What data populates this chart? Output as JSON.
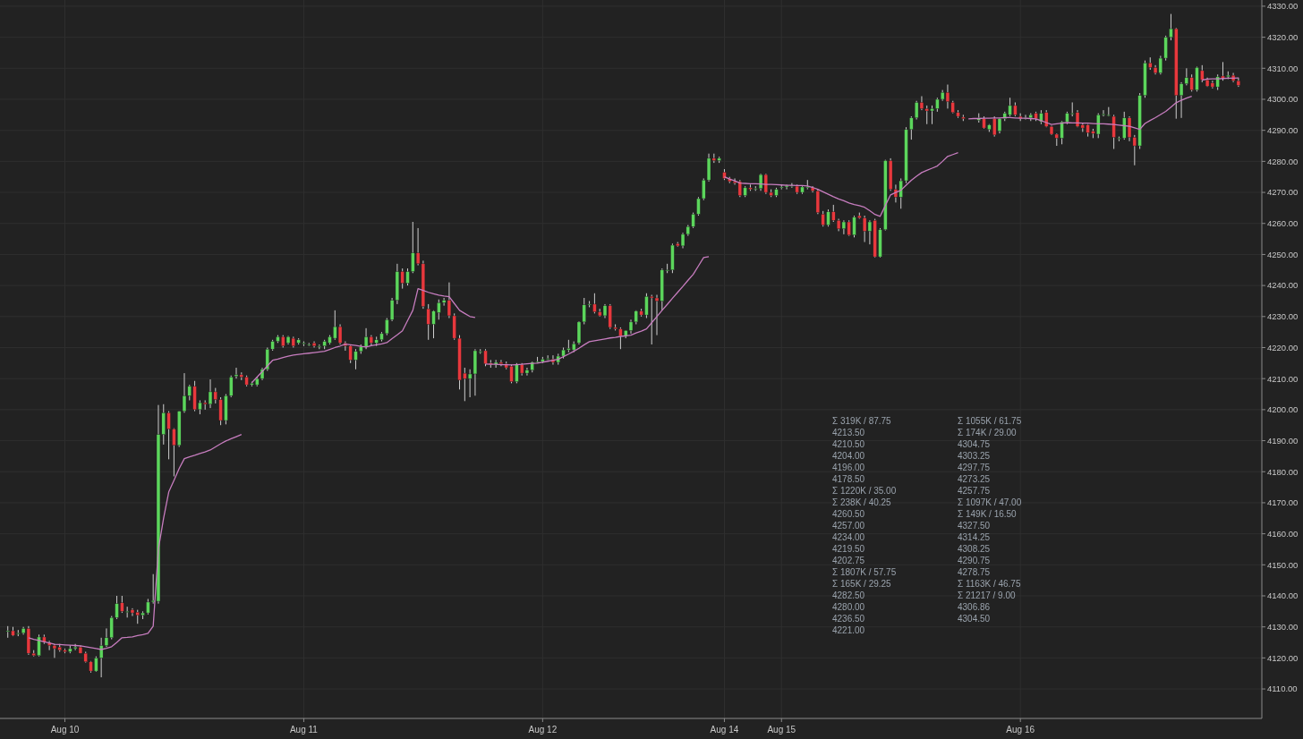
{
  "chart_data": {
    "type": "candlestick",
    "ylim": [
      4100.5,
      4332
    ],
    "categories": [
      null,
      null,
      null,
      null,
      null,
      null,
      null,
      null,
      null,
      null,
      null,
      null,
      "Aug 10",
      null,
      null,
      null,
      null,
      null,
      null,
      null,
      null,
      null,
      null,
      null,
      null,
      null,
      null,
      null,
      null,
      null,
      null,
      null,
      null,
      null,
      null,
      null,
      null,
      null,
      null,
      null,
      null,
      null,
      null,
      null,
      null,
      null,
      null,
      null,
      null,
      null,
      null,
      null,
      null,
      null,
      null,
      null,
      null,
      null,
      "Aug 11",
      null,
      null,
      null,
      null,
      null,
      null,
      null,
      null,
      null,
      null,
      null,
      null,
      null,
      null,
      null,
      null,
      null,
      null,
      null,
      null,
      null,
      null,
      null,
      null,
      null,
      null,
      null,
      null,
      null,
      null,
      null,
      null,
      null,
      null,
      null,
      null,
      null,
      null,
      null,
      null,
      null,
      null,
      null,
      null,
      null,
      "Aug 12",
      null,
      null,
      null,
      null,
      null,
      null,
      null,
      null,
      null,
      null,
      null,
      null,
      null,
      null,
      null,
      null,
      null,
      null,
      null,
      null,
      null,
      null,
      null,
      null,
      null,
      null,
      null,
      null,
      null,
      null,
      null,
      null,
      null,
      null,
      "Aug 14",
      null,
      null,
      null,
      null,
      null,
      null,
      null,
      null,
      null,
      null,
      "Aug 15",
      null,
      null,
      null,
      null,
      null,
      null,
      null,
      null,
      null,
      null,
      null,
      null,
      null,
      null,
      null,
      null,
      null,
      null,
      null,
      null,
      null,
      null,
      null,
      null,
      null,
      null,
      null,
      null,
      null,
      null,
      null,
      null,
      null,
      null,
      null,
      null,
      null,
      null,
      null,
      null,
      null,
      null,
      null,
      null,
      null,
      "Aug 16",
      null,
      null,
      null,
      null,
      null,
      null,
      null,
      null,
      null,
      null,
      null,
      null,
      null,
      null,
      null,
      null,
      null,
      null,
      null,
      null,
      null,
      null,
      null,
      null,
      null,
      null,
      null,
      null,
      null,
      null,
      null,
      null,
      null,
      null,
      null,
      null,
      null,
      null,
      null,
      null,
      null,
      null,
      null,
      null,
      null,
      null
    ],
    "yticks": [
      {
        "value": 4110,
        "label": "4110.00"
      },
      {
        "value": 4120,
        "label": "4120.00"
      },
      {
        "value": 4130,
        "label": "4130.00"
      },
      {
        "value": 4140,
        "label": "4140.00"
      },
      {
        "value": 4150,
        "label": "4150.00"
      },
      {
        "value": 4160,
        "label": "4160.00"
      },
      {
        "value": 4170,
        "label": "4170.00"
      },
      {
        "value": 4180,
        "label": "4180.00"
      },
      {
        "value": 4190,
        "label": "4190.00"
      },
      {
        "value": 4200,
        "label": "4200.00"
      },
      {
        "value": 4210,
        "label": "4210.00"
      },
      {
        "value": 4220,
        "label": "4220.00"
      },
      {
        "value": 4230,
        "label": "4230.00"
      },
      {
        "value": 4240,
        "label": "4240.00"
      },
      {
        "value": 4250,
        "label": "4250.00"
      },
      {
        "value": 4260,
        "label": "4260.00"
      },
      {
        "value": 4270,
        "label": "4270.00"
      },
      {
        "value": 4280,
        "label": "4280.00"
      },
      {
        "value": 4290,
        "label": "4290.00"
      },
      {
        "value": 4300,
        "label": "4300.00"
      },
      {
        "value": 4310,
        "label": "4310.00"
      },
      {
        "value": 4320,
        "label": "4320.00"
      },
      {
        "value": 4330,
        "label": "4330.00"
      }
    ],
    "grid": true,
    "series": [
      {
        "ohlc": [
          null,
          [
            4128.75,
            4130.25,
            4126.5,
            4128.75
          ],
          [
            4128.75,
            4130,
            4127,
            4127.25
          ],
          [
            4128,
            4129,
            4127,
            4128
          ],
          [
            4128,
            4130,
            4127.5,
            4129.5
          ],
          [
            4129.5,
            4130.25,
            4121,
            4121.5
          ],
          [
            4121.5,
            4122.5,
            4120.5,
            4120.75
          ],
          [
            4120.75,
            4127.5,
            4120.5,
            4126.75
          ],
          [
            4126.75,
            4127.5,
            4124.5,
            4125
          ],
          [
            4125,
            4125.5,
            4122.5,
            4124
          ],
          [
            4124,
            4124.5,
            4120,
            4123
          ],
          [
            4123.5,
            4124.5,
            4122,
            4122.5
          ],
          [
            4122.5,
            4123,
            4121.5,
            4122
          ],
          [
            4122,
            4124,
            4121.5,
            4123
          ],
          [
            4123,
            4124.5,
            4122.5,
            4123.5
          ],
          [
            4123.5,
            4124,
            4121.5,
            4121.5
          ],
          [
            4121.5,
            4122,
            4118.5,
            4118.75
          ],
          [
            4118.75,
            4119,
            4115.25,
            4115.75
          ],
          [
            4115.75,
            4120.5,
            4115.5,
            4120
          ],
          [
            4120,
            4126.5,
            4113.75,
            4124
          ],
          [
            4124,
            4129.5,
            4123.5,
            4126.5
          ],
          [
            4126.5,
            4133.5,
            4126,
            4133
          ],
          [
            4133,
            4140,
            4132.5,
            4137.5
          ],
          [
            4137.75,
            4140,
            4134.5,
            4135
          ],
          [
            4135,
            4136.5,
            4133,
            4135
          ],
          [
            4135.5,
            4136,
            4133.5,
            4134.5
          ],
          [
            4134.75,
            4135.5,
            4131,
            4133.75
          ],
          [
            4133.75,
            4135,
            4132.5,
            4134.5
          ],
          [
            4134.5,
            4139,
            4134,
            4138
          ],
          [
            4138,
            4147,
            4137.5,
            4138.5
          ],
          [
            4138.25,
            4201.5,
            4137.5,
            4192
          ],
          [
            4192,
            4201.75,
            4188.75,
            4199
          ],
          [
            4199,
            4199.5,
            4184,
            4193.75
          ],
          [
            4193.75,
            4194,
            4178.5,
            4188.5
          ],
          [
            4188.5,
            4199.5,
            4188,
            4199.5
          ],
          [
            4199.5,
            4211.75,
            4199,
            4204.5
          ],
          [
            4204.5,
            4208,
            4203,
            4207.5
          ],
          [
            4207.5,
            4209.25,
            4199.5,
            4200
          ],
          [
            4200,
            4203,
            4198.5,
            4202.25
          ],
          [
            4202.25,
            4203,
            4200,
            4201.75
          ],
          [
            4201.75,
            4209.75,
            4200.5,
            4205.75
          ],
          [
            4205.75,
            4207,
            4202,
            4203.25
          ],
          [
            4203.25,
            4204,
            4195,
            4196.5
          ],
          [
            4196.5,
            4205,
            4195.25,
            4204.5
          ],
          [
            4204.5,
            4211,
            4204,
            4210.5
          ],
          [
            4210.75,
            4213.5,
            4210,
            4211.25
          ],
          [
            4211.25,
            4212,
            4209.5,
            4210.5
          ],
          [
            4210.5,
            4211,
            4207.5,
            4208
          ],
          [
            4208,
            4209,
            4207.5,
            4208.5
          ],
          [
            4208,
            4210.5,
            4207.5,
            4210
          ],
          [
            4210,
            4213.5,
            4209.5,
            4213
          ],
          [
            4213,
            4220,
            4212.5,
            4219.5
          ],
          [
            4219.5,
            4222.5,
            4219,
            4222
          ],
          [
            4222,
            4224,
            4221.5,
            4223.5
          ],
          [
            4223.5,
            4224,
            4220,
            4220.5
          ],
          [
            4221.5,
            4223.75,
            4221,
            4223.5
          ],
          [
            4223,
            4223.5,
            4220,
            4220.5
          ],
          [
            4221.5,
            4223,
            4221,
            4222.5
          ],
          [
            4221.5,
            4222,
            4220.5,
            4221.5
          ],
          [
            4221,
            4221.5,
            4220.5,
            4221
          ],
          [
            4221.5,
            4222,
            4220,
            4220.5
          ],
          [
            4220.5,
            4221,
            4219.5,
            4220.5
          ],
          [
            4220.5,
            4222.5,
            4219.5,
            4222
          ],
          [
            4221.5,
            4224,
            4221,
            4223.5
          ],
          [
            4223,
            4232,
            4222.5,
            4226.75
          ],
          [
            4226.75,
            4227.5,
            4221,
            4221.5
          ],
          [
            4221.5,
            4222,
            4219,
            4220.5
          ],
          [
            4220.5,
            4221,
            4215,
            4216
          ],
          [
            4216,
            4219.5,
            4213,
            4218.75
          ],
          [
            4218.75,
            4221,
            4218,
            4220.25
          ],
          [
            4220.25,
            4226.25,
            4219.5,
            4223.5
          ],
          [
            4223.5,
            4224,
            4220.5,
            4221.5
          ],
          [
            4221.5,
            4223.5,
            4220.5,
            4222.5
          ],
          [
            4222.5,
            4225,
            4222,
            4224.5
          ],
          [
            4224.5,
            4229.5,
            4224,
            4229
          ],
          [
            4229,
            4236,
            4228.5,
            4235.25
          ],
          [
            4235.25,
            4247,
            4234,
            4244.5
          ],
          [
            4244.5,
            4245.5,
            4239,
            4240.75
          ],
          [
            4240.75,
            4245.5,
            4240,
            4244.5
          ],
          [
            4244.5,
            4260.5,
            4244,
            4250.5
          ],
          [
            4250.5,
            4258.5,
            4246.5,
            4247
          ],
          [
            4247,
            4248,
            4232.5,
            4233.25
          ],
          [
            4232.5,
            4234,
            4222.5,
            4227.5
          ],
          [
            4227.5,
            4232,
            4223,
            4231.75
          ],
          [
            4231.25,
            4235.5,
            4229,
            4234.5
          ],
          [
            4234.5,
            4236,
            4233.5,
            4235.25
          ],
          [
            4235.25,
            4241,
            4229.5,
            4230.25
          ],
          [
            4230.25,
            4231,
            4222.5,
            4223
          ],
          [
            4223,
            4224,
            4206.5,
            4209.5
          ],
          [
            4211.75,
            4213.5,
            4202.75,
            4210
          ],
          [
            4210,
            4213,
            4204,
            4211.5
          ],
          [
            4211.5,
            4219.5,
            4204.5,
            4219
          ],
          [
            4218.75,
            4219.5,
            4218,
            4218.75
          ],
          [
            4219,
            4219.5,
            4214,
            4214.75
          ],
          [
            4215,
            4216,
            4213.5,
            4214.5
          ],
          [
            4214.5,
            4216,
            4213.5,
            4215.25
          ],
          [
            4215.25,
            4216,
            4214,
            4214.75
          ],
          [
            4214.75,
            4215.5,
            4213,
            4213.5
          ],
          [
            4214,
            4214.5,
            4208.5,
            4209
          ],
          [
            4209,
            4215,
            4208.5,
            4214.5
          ],
          [
            4214.5,
            4215,
            4211,
            4211.75
          ],
          [
            4211.75,
            4213.5,
            4211,
            4212.75
          ],
          [
            4212.75,
            4215.5,
            4212,
            4215.25
          ],
          [
            4215.5,
            4217,
            4215,
            4215.5
          ],
          [
            4215.5,
            4217,
            4215,
            4216.25
          ],
          [
            4216.5,
            4217.5,
            4216,
            4216.5
          ],
          [
            4216.25,
            4217.5,
            4214.5,
            4215.25
          ],
          [
            4215.25,
            4218,
            4214.5,
            4217.25
          ],
          [
            4217.25,
            4220,
            4216.5,
            4219.25
          ],
          [
            4219.25,
            4222.5,
            4218.5,
            4219.75
          ],
          [
            4219.25,
            4222,
            4218.5,
            4221.25
          ],
          [
            4221.5,
            4228.5,
            4221,
            4228.25
          ],
          [
            4228.25,
            4236,
            4227.5,
            4233.75
          ],
          [
            4234,
            4235,
            4233,
            4234
          ],
          [
            4234,
            4237.5,
            4231,
            4231.5
          ],
          [
            4231.5,
            4232.5,
            4230,
            4230.25
          ],
          [
            4230.25,
            4234,
            4229.5,
            4233.5
          ],
          [
            4233.5,
            4234,
            4226,
            4226.5
          ],
          [
            4226.5,
            4227.5,
            4225.5,
            4226
          ],
          [
            4226,
            4226.5,
            4219.5,
            4223.75
          ],
          [
            4223.75,
            4225.5,
            4223,
            4225.5
          ],
          [
            4225.5,
            4229,
            4224.5,
            4228.25
          ],
          [
            4228.25,
            4232,
            4227.5,
            4231.75
          ],
          [
            4231.75,
            4232.5,
            4230,
            4230.5
          ],
          [
            4230.5,
            4237.5,
            4229.5,
            4236.5
          ],
          [
            4236.5,
            4237,
            4221,
            4236
          ],
          [
            4236,
            4237,
            4224,
            4235
          ],
          [
            4235,
            4245.5,
            4232,
            4245
          ],
          [
            4245,
            4247,
            4244,
            4245
          ],
          [
            4245,
            4253.5,
            4244,
            4253
          ],
          [
            4253.5,
            4254,
            4252.5,
            4252.75
          ],
          [
            4252.75,
            4257,
            4252,
            4256.5
          ],
          [
            4256.5,
            4259.5,
            4256,
            4259
          ],
          [
            4259,
            4263.5,
            4258.5,
            4263
          ],
          [
            4263,
            4268.5,
            4262.5,
            4268
          ],
          [
            4268,
            4274.5,
            4267.5,
            4274
          ],
          [
            4274,
            4282.5,
            4273.5,
            4281
          ],
          [
            4281,
            4282.5,
            4279.5,
            4280.25
          ],
          [
            4280.25,
            4281.5,
            4279.5,
            4281
          ],
          [
            4276.5,
            4277.5,
            4274,
            4274.5
          ],
          [
            4274.5,
            4275,
            4273,
            4273.5
          ],
          [
            4273.5,
            4274.5,
            4272.5,
            4273
          ],
          [
            4273.5,
            4274,
            4268.5,
            4269
          ],
          [
            4269,
            4272,
            4268.5,
            4271.5
          ],
          [
            4271.5,
            4272.5,
            4270.5,
            4271
          ],
          [
            4271.25,
            4272,
            4270.5,
            4271.25
          ],
          [
            4271.25,
            4276,
            4270.5,
            4275.75
          ],
          [
            4275.75,
            4276,
            4269.5,
            4270
          ],
          [
            4270,
            4271,
            4268.5,
            4269
          ],
          [
            4269,
            4271.5,
            4268.5,
            4271
          ],
          [
            4271.75,
            4272.5,
            4271,
            4271.75
          ],
          [
            4271.75,
            4272.5,
            4271,
            4272.25
          ],
          [
            4272.25,
            4273,
            4271.5,
            4272.25
          ],
          [
            4272,
            4272.5,
            4269.5,
            4270
          ],
          [
            4270,
            4272,
            4269.5,
            4271.75
          ],
          [
            4271.75,
            4274,
            4271,
            4271.75
          ],
          [
            4271.5,
            4272,
            4270,
            4270.5
          ],
          [
            4270.5,
            4271,
            4263,
            4263.5
          ],
          [
            4263,
            4264,
            4259,
            4259.5
          ],
          [
            4259.5,
            4264.5,
            4259,
            4263.75
          ],
          [
            4263.75,
            4266,
            4260.5,
            4261
          ],
          [
            4261,
            4261.5,
            4257.5,
            4258.25
          ],
          [
            4258.25,
            4261,
            4256.5,
            4260.5
          ],
          [
            4260.5,
            4261,
            4256,
            4256.25
          ],
          [
            4256.25,
            4262.5,
            4255.5,
            4262
          ],
          [
            4262.5,
            4263.5,
            4261.5,
            4261.75
          ],
          [
            4261.75,
            4262.5,
            4254,
            4257.5
          ],
          [
            4257.5,
            4261,
            4253.25,
            4260.5
          ],
          [
            4261,
            4261.5,
            4249,
            4249.25
          ],
          [
            4249.25,
            4258.5,
            4249,
            4258
          ],
          [
            4258,
            4280.5,
            4257.75,
            4280.25
          ],
          [
            4280.25,
            4281,
            4270.5,
            4271
          ],
          [
            4271,
            4272.5,
            4266.75,
            4268.5
          ],
          [
            4268.5,
            4274.5,
            4264.75,
            4273.75
          ],
          [
            4273.75,
            4291,
            4273,
            4290.25
          ],
          [
            4290.25,
            4294.5,
            4287,
            4294
          ],
          [
            4294,
            4299.5,
            4293.5,
            4299
          ],
          [
            4299,
            4301,
            4296.5,
            4297
          ],
          [
            4297,
            4298,
            4292,
            4296.25
          ],
          [
            4296.25,
            4298,
            4292,
            4297
          ],
          [
            4297,
            4300.5,
            4296,
            4300
          ],
          [
            4300,
            4303,
            4299.5,
            4302.25
          ],
          [
            4302.25,
            4304.75,
            4297,
            4299.25
          ],
          [
            4299,
            4299.5,
            4295.5,
            4295.75
          ],
          [
            4295.75,
            4296.5,
            4294,
            4294.5
          ],
          [
            4294.25,
            4295,
            4293,
            4293.75
          ],
          null,
          null,
          [
            4293.25,
            4295.5,
            4292.5,
            4294
          ],
          [
            4293.75,
            4294.5,
            4290.5,
            4290.75
          ],
          [
            4290.25,
            4292,
            4289.5,
            4291.75
          ],
          [
            4293.75,
            4294.5,
            4288,
            4288.5
          ],
          [
            4289.75,
            4294,
            4289,
            4293.75
          ],
          [
            4293.75,
            4296,
            4293,
            4295.5
          ],
          [
            4295,
            4300.5,
            4294.5,
            4298
          ],
          [
            4298,
            4299,
            4294.5,
            4295
          ],
          [
            4294.5,
            4295.5,
            4293,
            4293.75
          ],
          [
            4294,
            4295,
            4293.5,
            4294
          ],
          [
            4294,
            4295.5,
            4293,
            4295
          ],
          [
            4295.5,
            4296,
            4293,
            4293.75
          ],
          [
            4292.75,
            4296.5,
            4292,
            4295.5
          ],
          [
            4295.75,
            4296.5,
            4291,
            4291.25
          ],
          [
            4291.25,
            4291.5,
            4288.5,
            4288.75
          ],
          [
            4288.75,
            4289,
            4285,
            4287.5
          ],
          [
            4287.5,
            4293,
            4285.5,
            4292.75
          ],
          [
            4292.75,
            4296,
            4292,
            4295.5
          ],
          [
            4295.5,
            4299,
            4294.5,
            4295.5
          ],
          [
            4295.75,
            4296.5,
            4291,
            4291.25
          ],
          [
            4291.75,
            4292.5,
            4289.5,
            4290.75
          ],
          [
            4291.75,
            4292,
            4288,
            4289.25
          ],
          [
            4289.75,
            4290.5,
            4287.5,
            4289
          ],
          [
            4288.75,
            4295.5,
            4287.5,
            4295
          ],
          [
            4295.25,
            4296.5,
            4294.5,
            4295.25
          ],
          [
            4295,
            4297.5,
            4294.5,
            4295
          ],
          [
            4294.5,
            4295,
            4284,
            4287.75
          ],
          [
            4287.5,
            4288,
            4286.5,
            4287.5
          ],
          [
            4287.5,
            4296,
            4287,
            4294
          ],
          [
            4294,
            4294.5,
            4286.5,
            4287.75
          ],
          [
            4287.75,
            4288.5,
            4278.75,
            4285
          ],
          [
            4285,
            4302,
            4284,
            4301.25
          ],
          [
            4301.25,
            4312.5,
            4300.5,
            4311.75
          ],
          [
            4311.75,
            4313.5,
            4309.5,
            4310.25
          ],
          [
            4310.25,
            4311,
            4308,
            4308.5
          ],
          [
            4308.5,
            4314,
            4308,
            4313.25
          ],
          [
            4313.25,
            4320.5,
            4312.5,
            4320
          ],
          [
            4320,
            4327.5,
            4319,
            4322.75
          ],
          [
            4322.75,
            4323,
            4293.75,
            4301.25
          ],
          [
            4301.25,
            4305.5,
            4294,
            4305
          ],
          [
            4305,
            4310,
            4304.5,
            4307
          ],
          [
            4307,
            4308,
            4302.5,
            4303
          ],
          [
            4303,
            4310.5,
            4302.5,
            4310.25
          ],
          [
            4309.25,
            4311,
            4305.5,
            4306.25
          ],
          [
            4306.25,
            4307,
            4304,
            4304.25
          ],
          [
            4305.25,
            4306,
            4303.5,
            4304
          ],
          [
            4304,
            4308,
            4303,
            4307.25
          ],
          [
            4307.5,
            4312,
            4306,
            4306.75
          ],
          [
            4307.25,
            4309,
            4306.5,
            4307.75
          ],
          [
            4307.75,
            4308.5,
            4305.5,
            4306
          ],
          [
            4306,
            4307,
            4304,
            4304.5
          ],
          null,
          null,
          null,
          null
        ],
        "colors": [
          null,
          "#5cd65c",
          "#e8383d",
          "#5cd65c",
          "#5cd65c",
          "#e8383d",
          "#e8383d",
          "#5cd65c",
          "#e8383d",
          "#e8383d",
          "#e8383d",
          "#e8383d",
          "#e8383d",
          "#5cd65c",
          "#5cd65c",
          "#e8383d",
          "#e8383d",
          "#e8383d",
          "#5cd65c",
          "#5cd65c",
          "#5cd65c",
          "#5cd65c",
          "#5cd65c",
          "#e8383d",
          "#5cd65c",
          "#e8383d",
          "#e8383d",
          "#5cd65c",
          "#5cd65c",
          "#5cd65c",
          "#5cd65c",
          "#5cd65c",
          "#e8383d",
          "#e8383d",
          "#5cd65c",
          "#5cd65c",
          "#5cd65c",
          "#e8383d",
          "#5cd65c",
          "#e8383d",
          "#5cd65c",
          "#e8383d",
          "#e8383d",
          "#5cd65c",
          "#5cd65c",
          "#5cd65c",
          "#e8383d",
          "#e8383d",
          "#5cd65c",
          "#5cd65c",
          "#5cd65c",
          "#5cd65c",
          "#5cd65c",
          "#5cd65c",
          "#e8383d",
          "#5cd65c",
          "#e8383d",
          "#5cd65c",
          "#5cd65c",
          "#5cd65c",
          "#e8383d",
          "#5cd65c",
          "#5cd65c",
          "#5cd65c",
          "#5cd65c",
          "#e8383d",
          "#e8383d",
          "#e8383d",
          "#5cd65c",
          "#5cd65c",
          "#5cd65c",
          "#e8383d",
          "#5cd65c",
          "#5cd65c",
          "#5cd65c",
          "#5cd65c",
          "#5cd65c",
          "#e8383d",
          "#5cd65c",
          "#5cd65c",
          "#e8383d",
          "#e8383d",
          "#e8383d",
          "#5cd65c",
          "#5cd65c",
          "#5cd65c",
          "#e8383d",
          "#e8383d",
          "#e8383d",
          "#e8383d",
          "#5cd65c",
          "#5cd65c",
          "#5cd65c",
          "#e8383d",
          "#e8383d",
          "#5cd65c",
          "#e8383d",
          "#e8383d",
          "#e8383d",
          "#5cd65c",
          "#e8383d",
          "#5cd65c",
          "#5cd65c",
          "#5cd65c",
          "#5cd65c",
          "#5cd65c",
          "#e8383d",
          "#5cd65c",
          "#5cd65c",
          "#5cd65c",
          "#5cd65c",
          "#5cd65c",
          "#5cd65c",
          "#5cd65c",
          "#e8383d",
          "#e8383d",
          "#5cd65c",
          "#e8383d",
          "#e8383d",
          "#e8383d",
          "#5cd65c",
          "#5cd65c",
          "#5cd65c",
          "#e8383d",
          "#5cd65c",
          "#e8383d",
          "#e8383d",
          "#5cd65c",
          "#5cd65c",
          "#5cd65c",
          "#e8383d",
          "#5cd65c",
          "#5cd65c",
          "#5cd65c",
          "#5cd65c",
          "#5cd65c",
          "#5cd65c",
          "#e8383d",
          "#5cd65c",
          "#e8383d",
          "#e8383d",
          "#e8383d",
          "#e8383d",
          "#5cd65c",
          "#e8383d",
          "#5cd65c",
          "#5cd65c",
          "#e8383d",
          "#e8383d",
          "#5cd65c",
          "#5cd65c",
          "#5cd65c",
          "#5cd65c",
          "#e8383d",
          "#5cd65c",
          "#5cd65c",
          "#e8383d",
          "#e8383d",
          "#e8383d",
          "#5cd65c",
          "#e8383d",
          "#e8383d",
          "#5cd65c",
          "#e8383d",
          "#5cd65c",
          "#e8383d",
          "#e8383d",
          "#5cd65c",
          "#e8383d",
          "#5cd65c",
          "#5cd65c",
          "#e8383d",
          "#e8383d",
          "#5cd65c",
          "#5cd65c",
          "#5cd65c",
          "#5cd65c",
          "#e8383d",
          "#e8383d",
          "#5cd65c",
          "#5cd65c",
          "#5cd65c",
          "#e8383d",
          "#e8383d",
          "#e8383d",
          "#e8383d",
          null,
          null,
          "#5cd65c",
          "#e8383d",
          "#5cd65c",
          "#e8383d",
          "#5cd65c",
          "#5cd65c",
          "#5cd65c",
          "#e8383d",
          "#e8383d",
          "#5cd65c",
          "#5cd65c",
          "#e8383d",
          "#5cd65c",
          "#e8383d",
          "#e8383d",
          "#e8383d",
          "#5cd65c",
          "#5cd65c",
          "#5cd65c",
          "#e8383d",
          "#e8383d",
          "#e8383d",
          "#e8383d",
          "#5cd65c",
          "#5cd65c",
          "#5cd65c",
          "#e8383d",
          "#5cd65c",
          "#5cd65c",
          "#e8383d",
          "#e8383d",
          "#5cd65c",
          "#5cd65c",
          "#e8383d",
          "#e8383d",
          "#5cd65c",
          "#5cd65c",
          "#5cd65c",
          "#e8383d",
          "#5cd65c",
          "#5cd65c",
          "#e8383d",
          "#5cd65c",
          "#e8383d",
          "#e8383d",
          "#e8383d",
          "#5cd65c",
          "#e8383d",
          "#5cd65c",
          "#e8383d",
          "#e8383d",
          null,
          null,
          null,
          null
        ]
      },
      {
        "type": "line",
        "color": "#c77dbf",
        "values": [
          null,
          null,
          null,
          null,
          null,
          4126.5,
          4126,
          4125.6,
          4125.2,
          4124.8,
          4124.4,
          4124.3,
          4124.2,
          4124.1,
          4124,
          4123.9,
          4123.6,
          4123.3,
          4123,
          4122.7,
          4123.1,
          4123.6,
          4125,
          4126.5,
          4126.6,
          4126.8,
          4127.2,
          4127.5,
          4127.9,
          4130.2,
          4155,
          4165,
          4173.5,
          4177.2,
          4181,
          4184.2,
          4184.8,
          4185.3,
          4185.9,
          4186.4,
          4187,
          4188,
          4189,
          4189.9,
          4190.6,
          4191.3,
          4192,
          null,
          4208.7,
          4210.5,
          4212.3,
          4214.1,
          4215.9,
          4216.3,
          4216.8,
          4217.2,
          4217.6,
          4217.8,
          4218,
          4218.2,
          4218.4,
          4218.6,
          4218.8,
          4219.4,
          4220,
          4220.5,
          4221.1,
          4220.9,
          4220.7,
          4220.4,
          4220.2,
          4220.6,
          4220.9,
          4221.2,
          4221.6,
          4222.9,
          4224.1,
          4225.4,
          4228.7,
          4232,
          4239,
          4238.4,
          4237.8,
          4237.3,
          4236.9,
          4236.6,
          4236.4,
          4234.2,
          4232,
          4231,
          4230,
          4229.7,
          null,
          4214.7,
          4214.6,
          4214.6,
          4214.5,
          4214.5,
          4214.4,
          4214.5,
          4214.6,
          4214.8,
          4214.9,
          4215,
          4215.3,
          4215.6,
          4215.9,
          4216.2,
          4217.1,
          4217.9,
          4218.8,
          4219.8,
          4220.9,
          4221.9,
          4222.2,
          4222.5,
          4222.8,
          4223.1,
          4223.3,
          4223.6,
          4223.8,
          4224,
          4224.7,
          4225.3,
          4226,
          4228,
          4230,
          4232,
          4233.9,
          4235.9,
          4237.8,
          4239.7,
          4241.7,
          4243.6,
          4246.3,
          4249,
          4249.3,
          null,
          null,
          4275,
          4274.3,
          4273.7,
          4273,
          4272.9,
          4272.8,
          4272.8,
          4272.7,
          4272.6,
          4272.6,
          4272.5,
          4272.4,
          4272.3,
          4272.3,
          4272.2,
          4272.2,
          4272.1,
          4271.6,
          4271,
          4270.2,
          4269.4,
          4268.6,
          4267.9,
          4267.3,
          4266.6,
          4266.1,
          4265.7,
          4265.2,
          4264.1,
          4262.9,
          4262.3,
          4265.8,
          4269.2,
          4270,
          4270.7,
          4272.3,
          4273.9,
          4275.2,
          4276.4,
          4277.1,
          4277.8,
          4278.5,
          4280,
          4281.6,
          4282.2,
          4282.8,
          null,
          4293.7,
          4293.8,
          4293.8,
          4293.9,
          4293.9,
          4294,
          4294,
          4294.1,
          4294.1,
          4294,
          4293.9,
          4293.9,
          4293.8,
          4293.7,
          4293.1,
          4292.5,
          4291.9,
          4292.1,
          4292.3,
          4292.5,
          4292.4,
          4292.4,
          4292.3,
          4292.3,
          4292.2,
          4292.1,
          4292.1,
          4292,
          4291.9,
          4291.7,
          4291.5,
          4291.3,
          4290.8,
          4290.3,
          4292.2,
          4293.2,
          4294.1,
          4295.1,
          4296.1,
          4297.5,
          4298.9,
          4299.7,
          4300.4,
          4301,
          null,
          4306.2,
          4306.5,
          4306.6,
          4306.6,
          4306.7,
          4306.8,
          4306.8,
          4306.9,
          null,
          null,
          null,
          null
        ]
      }
    ],
    "annotations": [
      "Σ 319K / 87.75",
      "4213.50",
      "4210.50",
      "4204.00",
      "4196.00",
      "4178.50",
      "Σ 1220K / 35.00",
      "Σ 238K / 40.25",
      "4260.50",
      "4257.00",
      "4234.00",
      "4219.50",
      "4202.75",
      "Σ 1807K / 57.75",
      "Σ 165K / 29.25",
      "4282.50",
      "4280.00",
      "4236.50",
      "4221.00",
      "Σ 1055K / 61.75",
      "Σ 174K / 29.00",
      "4304.75",
      "4303.25",
      "4297.75",
      "4273.25",
      "4257.75",
      "Σ 1097K / 47.00",
      "Σ 149K / 16.50",
      "4327.50",
      "4314.25",
      "4308.25",
      "4290.75",
      "4278.75",
      "Σ 1163K / 46.75",
      "Σ 21217 / 9.00",
      "4306.86",
      "4304.50"
    ]
  }
}
